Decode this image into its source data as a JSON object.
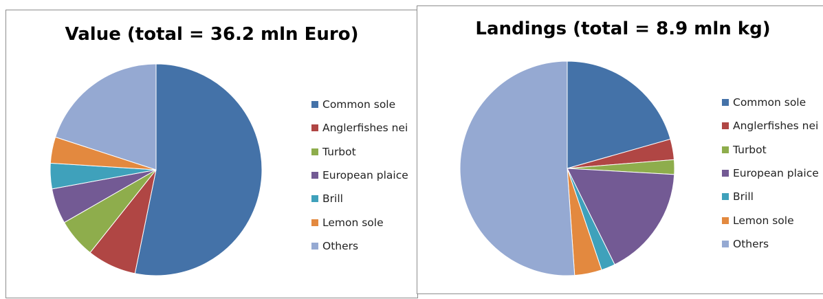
{
  "chart_data": [
    {
      "type": "pie",
      "title": "Value (total = 36.2 mln Euro)",
      "categories": [
        "Common sole",
        "Anglerfishes nei",
        "Turbot",
        "European plaice",
        "Brill",
        "Lemon sole",
        "Others"
      ],
      "values": [
        53.2,
        7.5,
        6.0,
        5.4,
        3.9,
        4.0,
        20.0
      ],
      "unit": "percent of total value",
      "legend_position": "right"
    },
    {
      "type": "pie",
      "title": "Landings (total = 8.9 mln kg)",
      "categories": [
        "Common sole",
        "Anglerfishes nei",
        "Turbot",
        "European plaice",
        "Brill",
        "Lemon sole",
        "Others"
      ],
      "values": [
        20.6,
        3.1,
        2.2,
        16.8,
        2.1,
        4.1,
        51.1
      ],
      "unit": "percent of total landings",
      "legend_position": "right"
    }
  ],
  "colors": [
    "#4472A8",
    "#B04644",
    "#8EAD4C",
    "#735A94",
    "#3FA1BB",
    "#E3893F",
    "#95A9D2"
  ]
}
